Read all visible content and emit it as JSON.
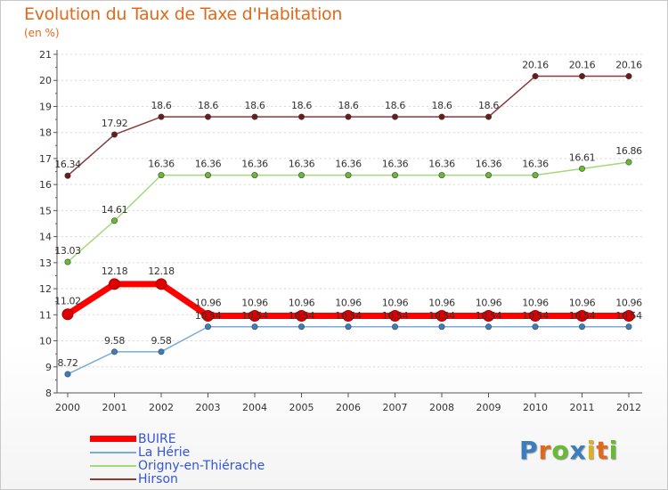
{
  "chart_data": {
    "type": "line",
    "title": "Evolution du Taux de Taxe d'Habitation",
    "unit_label": "(en %)",
    "x": [
      2000,
      2001,
      2002,
      2003,
      2004,
      2005,
      2006,
      2007,
      2008,
      2009,
      2010,
      2011,
      2012
    ],
    "x_tick_labels": [
      "2000",
      "2001",
      "2002",
      "2003",
      "2004",
      "2005",
      "2006",
      "2007",
      "2008",
      "2009",
      "2010",
      "2011",
      "2012"
    ],
    "y_ticks": [
      8,
      9,
      10,
      11,
      12,
      13,
      14,
      15,
      16,
      17,
      18,
      19,
      20,
      21
    ],
    "ylim": [
      8,
      21
    ],
    "grid": "horizontal dashed",
    "legend_position": "bottom-left",
    "series": [
      {
        "name": "Hirson",
        "color": "#8b3a3a",
        "marker_color": "#6b1a1a",
        "values": [
          16.34,
          17.92,
          18.6,
          18.6,
          18.6,
          18.6,
          18.6,
          18.6,
          18.6,
          18.6,
          20.16,
          20.16,
          20.16
        ],
        "labels": [
          "16.34",
          "17.92",
          "18.6",
          "18.6",
          "18.6",
          "18.6",
          "18.6",
          "18.6",
          "18.6",
          "18.6",
          "20.16",
          "20.16",
          "20.16"
        ]
      },
      {
        "name": "Origny-en-Thiérache",
        "color": "#a5d87a",
        "marker_color": "#66bb33",
        "values": [
          13.03,
          14.61,
          16.36,
          16.36,
          16.36,
          16.36,
          16.36,
          16.36,
          16.36,
          16.36,
          16.36,
          16.61,
          16.86
        ],
        "labels": [
          "13.03",
          "14.61",
          "16.36",
          "16.36",
          "16.36",
          "16.36",
          "16.36",
          "16.36",
          "16.36",
          "16.36",
          "16.36",
          "16.61",
          "16.86"
        ]
      },
      {
        "name": "La Hérie",
        "color": "#7aaad8",
        "marker_color": "#3a7ec0",
        "values": [
          8.72,
          9.58,
          9.58,
          10.54,
          10.54,
          10.54,
          10.54,
          10.54,
          10.54,
          10.54,
          10.54,
          10.54,
          10.54
        ],
        "labels": [
          "8.72",
          "9.58",
          "9.58",
          "10.54",
          "10.54",
          "10.54",
          "10.54",
          "10.54",
          "10.54",
          "10.54",
          "10.54",
          "10.54",
          "10.54"
        ]
      },
      {
        "name": "BUIRE",
        "color": "#ff0000",
        "marker_color": "#dd0000",
        "values": [
          11.02,
          12.18,
          12.18,
          10.96,
          10.96,
          10.96,
          10.96,
          10.96,
          10.96,
          10.96,
          10.96,
          10.96,
          10.96
        ],
        "labels": [
          "11.02",
          "12.18",
          "12.18",
          "10.96",
          "10.96",
          "10.96",
          "10.96",
          "10.96",
          "10.96",
          "10.96",
          "10.96",
          "10.96",
          "10.96"
        ]
      }
    ]
  },
  "legend": [
    {
      "label": "BUIRE",
      "color": "#ff0000"
    },
    {
      "label": "La Hérie",
      "color": "#7aaad8"
    },
    {
      "label": "Origny-en-Thiérache",
      "color": "#a5d87a"
    },
    {
      "label": "Hirson",
      "color": "#8b3a3a"
    }
  ],
  "logo": {
    "letters": [
      "P",
      "r",
      "o",
      "x",
      "i",
      "t",
      "i"
    ],
    "colors": [
      "#3a7ec0",
      "#e06a1b",
      "#66bb33",
      "#3a7ec0",
      "#e0b020",
      "#e06a1b",
      "#66bb33"
    ]
  }
}
